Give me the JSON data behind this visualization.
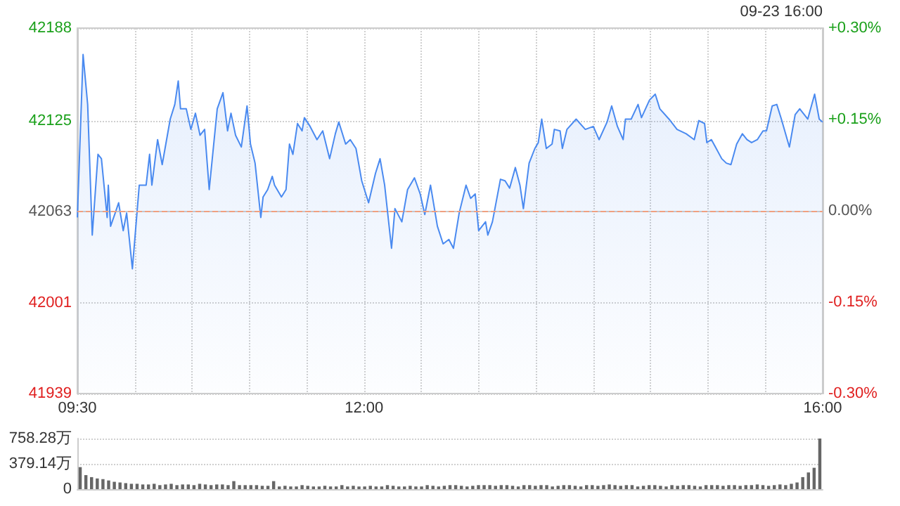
{
  "chart_data": [
    {
      "type": "area",
      "annotations": [
        "09-23 16:00"
      ],
      "x": [
        9.5,
        9.55,
        9.59,
        9.63,
        9.68,
        9.71,
        9.76,
        9.77,
        9.79,
        9.83,
        9.86,
        9.9,
        9.93,
        9.98,
        10.04,
        10.1,
        10.13,
        10.15,
        10.2,
        10.24,
        10.31,
        10.35,
        10.38,
        10.4,
        10.45,
        10.49,
        10.53,
        10.57,
        10.61,
        10.65,
        10.72,
        10.77,
        10.81,
        10.84,
        10.88,
        10.93,
        10.98,
        11.01,
        11.05,
        11.1,
        11.12,
        11.16,
        11.2,
        11.22,
        11.28,
        11.32,
        11.35,
        11.38,
        11.42,
        11.46,
        11.48,
        11.53,
        11.59,
        11.64,
        11.7,
        11.75,
        11.78,
        11.84,
        11.88,
        11.93,
        11.98,
        12.04,
        12.1,
        12.14,
        12.18,
        12.24,
        12.27,
        12.33,
        12.38,
        12.44,
        12.49,
        12.53,
        12.58,
        12.64,
        12.69,
        12.74,
        12.78,
        12.83,
        12.89,
        12.93,
        12.97,
        13.0,
        13.06,
        13.08,
        13.12,
        13.19,
        13.23,
        13.27,
        13.32,
        13.36,
        13.39,
        13.44,
        13.49,
        13.52,
        13.55,
        13.59,
        13.64,
        13.66,
        13.71,
        13.73,
        13.77,
        13.85,
        13.93,
        14.0,
        14.05,
        14.12,
        14.16,
        14.21,
        14.26,
        14.28,
        14.33,
        14.39,
        14.42,
        14.49,
        14.54,
        14.58,
        14.66,
        14.73,
        14.81,
        14.88,
        14.92,
        14.97,
        14.99,
        15.03,
        15.12,
        15.16,
        15.2,
        15.25,
        15.3,
        15.34,
        15.38,
        15.43,
        15.48,
        15.51,
        15.56,
        15.6,
        15.64,
        15.71,
        15.76,
        15.8,
        15.87,
        15.93,
        15.97,
        16.0
      ],
      "series": [
        {
          "color": "#4a8af0",
          "values": [
            42059,
            42170,
            42136,
            42047,
            42102,
            42099,
            42059,
            42081,
            42053,
            42062,
            42069,
            42050,
            42062,
            42024,
            42081,
            42081,
            42102,
            42081,
            42112,
            42095,
            42126,
            42136,
            42152,
            42133,
            42133,
            42119,
            42130,
            42115,
            42119,
            42078,
            42133,
            42144,
            42118,
            42130,
            42115,
            42107,
            42135,
            42109,
            42096,
            42059,
            42073,
            42078,
            42087,
            42081,
            42073,
            42078,
            42109,
            42102,
            42123,
            42118,
            42127,
            42121,
            42112,
            42118,
            42099,
            42116,
            42124,
            42109,
            42112,
            42106,
            42084,
            42069,
            42089,
            42099,
            42081,
            42038,
            42065,
            42056,
            42078,
            42086,
            42075,
            42061,
            42081,
            42053,
            42041,
            42044,
            42038,
            42062,
            42081,
            42072,
            42075,
            42050,
            42056,
            42047,
            42056,
            42085,
            42084,
            42079,
            42093,
            42081,
            42065,
            42096,
            42106,
            42110,
            42126,
            42106,
            42109,
            42119,
            42118,
            42106,
            42119,
            42126,
            42119,
            42121,
            42112,
            42124,
            42135,
            42121,
            42112,
            42126,
            42126,
            42136,
            42127,
            42139,
            42143,
            42133,
            42126,
            42119,
            42116,
            42112,
            42125,
            42123,
            42110,
            42112,
            42099,
            42096,
            42095,
            42109,
            42116,
            42112,
            42110,
            42112,
            42118,
            42118,
            42135,
            42136,
            42126,
            42107,
            42129,
            42133,
            42126,
            42143,
            42126,
            42124
          ]
        }
      ],
      "xlim": [
        9.5,
        16
      ],
      "xticks": [
        {
          "value": 9.5,
          "label": "09:30"
        },
        {
          "value": 10,
          "label": null
        },
        {
          "value": 10.5,
          "label": null
        },
        {
          "value": 11,
          "label": null
        },
        {
          "value": 11.5,
          "label": null
        },
        {
          "value": 12,
          "label": "12:00"
        },
        {
          "value": 12.5,
          "label": null
        },
        {
          "value": 13,
          "label": null
        },
        {
          "value": 13.5,
          "label": null
        },
        {
          "value": 14,
          "label": null
        },
        {
          "value": 14.5,
          "label": null
        },
        {
          "value": 15,
          "label": null
        },
        {
          "value": 15.5,
          "label": null
        },
        {
          "value": 16,
          "label": "16:00"
        }
      ],
      "ylim": [
        41939,
        42188
      ],
      "yticks": [
        41939,
        42001,
        42063,
        42125,
        42188
      ],
      "y2lim": [
        -0.3,
        0.3
      ],
      "y2ticks": [
        {
          "value": -0.3,
          "label": "-0.30%"
        },
        {
          "value": -0.15,
          "label": "-0.15%"
        },
        {
          "value": 0,
          "label": "0.00%"
        },
        {
          "value": 0.15,
          "label": "+0.15%"
        },
        {
          "value": 0.3,
          "label": "+0.30%"
        }
      ],
      "ref_lines": [
        {
          "axis": "y",
          "value": 42063,
          "color": "#f0a080",
          "line_style": "dashed"
        }
      ],
      "grid": true
    },
    {
      "type": "bar",
      "categories": [
        null,
        null,
        null,
        null,
        null,
        null,
        null,
        null,
        null,
        null,
        null,
        null,
        null,
        null,
        null,
        null,
        null,
        null,
        null,
        null,
        null,
        null,
        null,
        null,
        null,
        null,
        null,
        null,
        null,
        null,
        null,
        null,
        null,
        null,
        null,
        null,
        null,
        null,
        null,
        null,
        null,
        null,
        null,
        null,
        null,
        null,
        null,
        null,
        null,
        null,
        null,
        null,
        null,
        null,
        null,
        null,
        null,
        null,
        null,
        null,
        null,
        null,
        null,
        null,
        null,
        null,
        null,
        null,
        null,
        null,
        null,
        null,
        null,
        null,
        null,
        null,
        null,
        null,
        null,
        null,
        null,
        null,
        null,
        null,
        null,
        null,
        null,
        null,
        null,
        null,
        null,
        null,
        null,
        null,
        null,
        null,
        null,
        null,
        null,
        null,
        null,
        null,
        null,
        null,
        null,
        null,
        null,
        null,
        null,
        null,
        null,
        null,
        null,
        null,
        null,
        null,
        null,
        null,
        null,
        null,
        null,
        null,
        null,
        null,
        null,
        null,
        null,
        null,
        null,
        null,
        null
      ],
      "series": [
        {
          "color": "#666666",
          "values": [
            330,
            210,
            180,
            160,
            150,
            130,
            110,
            100,
            90,
            80,
            80,
            70,
            70,
            80,
            60,
            70,
            80,
            60,
            70,
            70,
            60,
            80,
            70,
            60,
            70,
            70,
            60,
            120,
            60,
            60,
            60,
            60,
            50,
            50,
            120,
            40,
            50,
            40,
            40,
            60,
            50,
            40,
            40,
            50,
            40,
            40,
            60,
            40,
            50,
            40,
            40,
            50,
            40,
            40,
            60,
            50,
            40,
            40,
            50,
            40,
            40,
            60,
            50,
            40,
            50,
            60,
            60,
            50,
            40,
            50,
            60,
            60,
            60,
            50,
            60,
            60,
            50,
            40,
            60,
            60,
            50,
            60,
            60,
            40,
            50,
            60,
            60,
            50,
            40,
            60,
            60,
            50,
            60,
            70,
            60,
            50,
            60,
            60,
            40,
            50,
            60,
            60,
            50,
            40,
            60,
            50,
            60,
            60,
            50,
            40,
            60,
            60,
            60,
            50,
            60,
            60,
            50,
            60,
            60,
            70,
            60,
            50,
            60,
            70,
            60,
            80,
            100,
            180,
            250,
            320,
            758.28
          ]
        }
      ],
      "ylim": [
        0,
        758.28
      ],
      "yticks": [
        0,
        {
          "value": 379.14,
          "label": "379.14万"
        },
        {
          "value": 758.28,
          "label": "758.28万"
        }
      ],
      "tick_labels": "y",
      "grid": "y"
    }
  ]
}
